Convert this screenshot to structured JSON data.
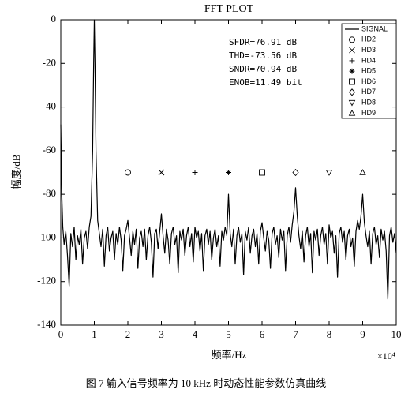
{
  "chart_data": {
    "type": "line",
    "title": "FFT PLOT",
    "xlabel": "频率/Hz",
    "ylabel": "幅度/dB",
    "x_scale_label": "×10⁴",
    "caption": "图 7   输入信号频率为 10 kHz 时动态性能参数仿真曲线",
    "annotations": [
      "SFDR=76.91 dB",
      "THD=-73.56 dB",
      "SNDR=70.94 dB",
      "ENOB=11.49 bit"
    ],
    "xlim": [
      0,
      10
    ],
    "xticks": [
      0,
      1,
      2,
      3,
      4,
      5,
      6,
      7,
      8,
      9,
      10
    ],
    "ylim": [
      -140,
      0
    ],
    "yticks": [
      0,
      -20,
      -40,
      -60,
      -80,
      -100,
      -120,
      -140
    ],
    "grid": false,
    "legend": "upper right",
    "series": [
      {
        "name": "SIGNAL",
        "color": "#000000",
        "x": [
          0,
          0.03,
          0.06,
          0.1,
          0.15,
          0.2,
          0.25,
          0.3,
          0.35,
          0.4,
          0.45,
          0.5,
          0.55,
          0.6,
          0.65,
          0.7,
          0.75,
          0.8,
          0.85,
          0.9,
          0.95,
          0.98,
          1.0,
          1.02,
          1.05,
          1.1,
          1.15,
          1.2,
          1.25,
          1.3,
          1.35,
          1.4,
          1.45,
          1.5,
          1.55,
          1.6,
          1.65,
          1.7,
          1.75,
          1.8,
          1.85,
          1.9,
          1.95,
          2.0,
          2.05,
          2.1,
          2.15,
          2.2,
          2.25,
          2.3,
          2.35,
          2.4,
          2.45,
          2.5,
          2.55,
          2.6,
          2.65,
          2.7,
          2.75,
          2.8,
          2.85,
          2.9,
          2.95,
          3.0,
          3.05,
          3.1,
          3.15,
          3.2,
          3.25,
          3.3,
          3.35,
          3.4,
          3.45,
          3.5,
          3.55,
          3.6,
          3.65,
          3.7,
          3.75,
          3.8,
          3.85,
          3.9,
          3.95,
          4.0,
          4.05,
          4.1,
          4.15,
          4.2,
          4.25,
          4.3,
          4.35,
          4.4,
          4.45,
          4.5,
          4.55,
          4.6,
          4.65,
          4.7,
          4.75,
          4.8,
          4.85,
          4.9,
          4.95,
          5.0,
          5.05,
          5.1,
          5.15,
          5.2,
          5.25,
          5.3,
          5.35,
          5.4,
          5.45,
          5.5,
          5.55,
          5.6,
          5.65,
          5.7,
          5.75,
          5.8,
          5.85,
          5.9,
          5.95,
          6.0,
          6.05,
          6.1,
          6.15,
          6.2,
          6.25,
          6.3,
          6.35,
          6.4,
          6.45,
          6.5,
          6.55,
          6.6,
          6.65,
          6.7,
          6.75,
          6.8,
          6.85,
          6.9,
          6.95,
          7.0,
          7.05,
          7.1,
          7.15,
          7.2,
          7.25,
          7.3,
          7.35,
          7.4,
          7.45,
          7.5,
          7.55,
          7.6,
          7.65,
          7.7,
          7.75,
          7.8,
          7.85,
          7.9,
          7.95,
          8.0,
          8.05,
          8.1,
          8.15,
          8.2,
          8.25,
          8.3,
          8.35,
          8.4,
          8.45,
          8.5,
          8.55,
          8.6,
          8.65,
          8.7,
          8.75,
          8.8,
          8.85,
          8.9,
          8.95,
          9.0,
          9.05,
          9.1,
          9.15,
          9.2,
          9.25,
          9.3,
          9.35,
          9.4,
          9.45,
          9.5,
          9.55,
          9.6,
          9.65,
          9.7,
          9.75,
          9.8,
          9.85,
          9.9,
          9.95,
          10.0
        ],
        "values": [
          -48,
          -80,
          -95,
          -103,
          -97,
          -108,
          -122,
          -98,
          -104,
          -95,
          -110,
          -99,
          -103,
          -96,
          -112,
          -100,
          -97,
          -105,
          -95,
          -90,
          -60,
          -20,
          0,
          -20,
          -60,
          -92,
          -98,
          -104,
          -96,
          -113,
          -99,
          -95,
          -106,
          -100,
          -97,
          -110,
          -98,
          -103,
          -95,
          -101,
          -115,
          -99,
          -96,
          -92,
          -100,
          -108,
          -97,
          -103,
          -96,
          -114,
          -100,
          -97,
          -104,
          -96,
          -110,
          -99,
          -95,
          -102,
          -118,
          -98,
          -96,
          -105,
          -97,
          -89,
          -99,
          -107,
          -96,
          -101,
          -112,
          -98,
          -95,
          -103,
          -99,
          -116,
          -97,
          -101,
          -96,
          -108,
          -99,
          -95,
          -104,
          -98,
          -111,
          -95,
          -100,
          -97,
          -106,
          -98,
          -115,
          -99,
          -96,
          -103,
          -97,
          -110,
          -100,
          -96,
          -104,
          -99,
          -113,
          -97,
          -101,
          -95,
          -99,
          -80,
          -98,
          -104,
          -96,
          -112,
          -99,
          -95,
          -102,
          -98,
          -117,
          -97,
          -101,
          -95,
          -107,
          -99,
          -96,
          -104,
          -98,
          -112,
          -97,
          -93,
          -100,
          -106,
          -97,
          -101,
          -114,
          -98,
          -95,
          -103,
          -99,
          -109,
          -96,
          -101,
          -97,
          -115,
          -99,
          -95,
          -102,
          -94,
          -88,
          -77,
          -90,
          -99,
          -105,
          -97,
          -111,
          -99,
          -95,
          -104,
          -98,
          -116,
          -97,
          -101,
          -96,
          -108,
          -99,
          -95,
          -103,
          -98,
          -112,
          -94,
          -100,
          -97,
          -107,
          -99,
          -118,
          -98,
          -95,
          -102,
          -97,
          -110,
          -99,
          -96,
          -104,
          -100,
          -113,
          -97,
          -92,
          -96,
          -90,
          -80,
          -93,
          -99,
          -104,
          -97,
          -112,
          -98,
          -95,
          -103,
          -99,
          -109,
          -96,
          -101,
          -97,
          -106,
          -128,
          -99,
          -95,
          -102,
          -98,
          -107
        ]
      },
      {
        "name": "HD2",
        "marker": "circle",
        "x": [
          2
        ],
        "values": [
          -70
        ]
      },
      {
        "name": "HD3",
        "marker": "x",
        "x": [
          3
        ],
        "values": [
          -70
        ]
      },
      {
        "name": "HD4",
        "marker": "plus",
        "x": [
          4
        ],
        "values": [
          -70
        ]
      },
      {
        "name": "HD5",
        "marker": "star",
        "x": [
          5
        ],
        "values": [
          -70
        ]
      },
      {
        "name": "HD6",
        "marker": "square",
        "x": [
          6
        ],
        "values": [
          -70
        ]
      },
      {
        "name": "HD7",
        "marker": "diamond",
        "x": [
          7
        ],
        "values": [
          -70
        ]
      },
      {
        "name": "HD8",
        "marker": "triangle-down",
        "x": [
          8
        ],
        "values": [
          -70
        ]
      },
      {
        "name": "HD9",
        "marker": "triangle-up",
        "x": [
          9
        ],
        "values": [
          -70
        ]
      }
    ]
  }
}
